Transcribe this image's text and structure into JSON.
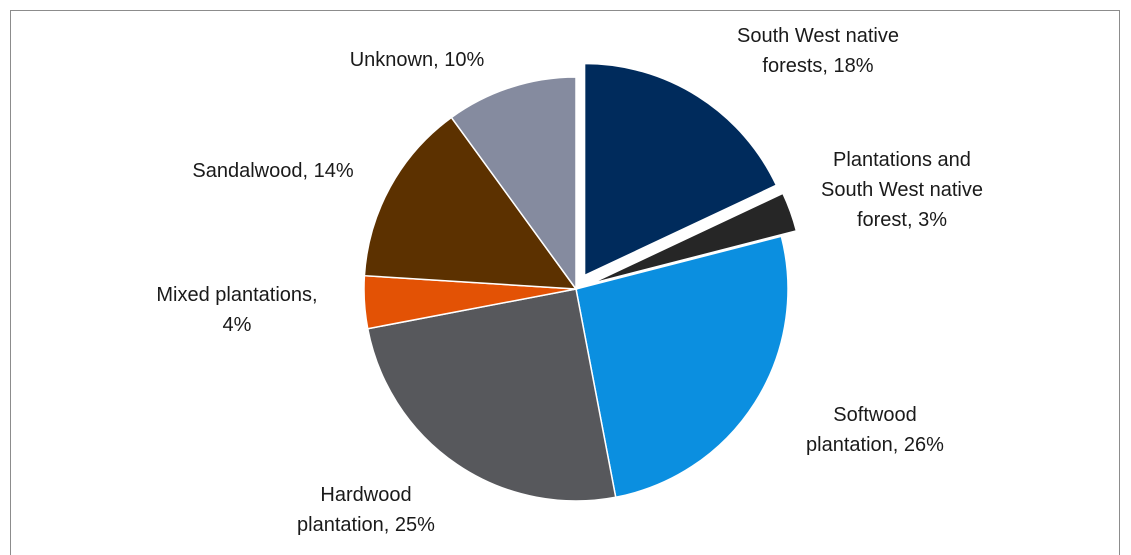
{
  "chart_data": {
    "type": "pie",
    "slices": [
      {
        "label_lines": [
          "South West native",
          "forests, 18%"
        ],
        "value": 18,
        "color": "#002b5c",
        "exploded": true
      },
      {
        "label_lines": [
          "Plantations and",
          "South West native",
          "forest, 3%"
        ],
        "value": 3,
        "color": "#262626",
        "exploded": true
      },
      {
        "label_lines": [
          "Softwood",
          "plantation, 26%"
        ],
        "value": 26,
        "color": "#0b8fe0",
        "exploded": false
      },
      {
        "label_lines": [
          "Hardwood",
          "plantation, 25%"
        ],
        "value": 25,
        "color": "#57585c",
        "exploded": false
      },
      {
        "label_lines": [
          "Mixed plantations,",
          "4%"
        ],
        "value": 4,
        "color": "#e35205",
        "exploded": false
      },
      {
        "label_lines": [
          "Sandalwood, 14%"
        ],
        "value": 14,
        "color": "#5c3100",
        "exploded": false
      },
      {
        "label_lines": [
          "Unknown, 10%"
        ],
        "value": 10,
        "color": "#858b9f",
        "exploded": false
      }
    ]
  }
}
